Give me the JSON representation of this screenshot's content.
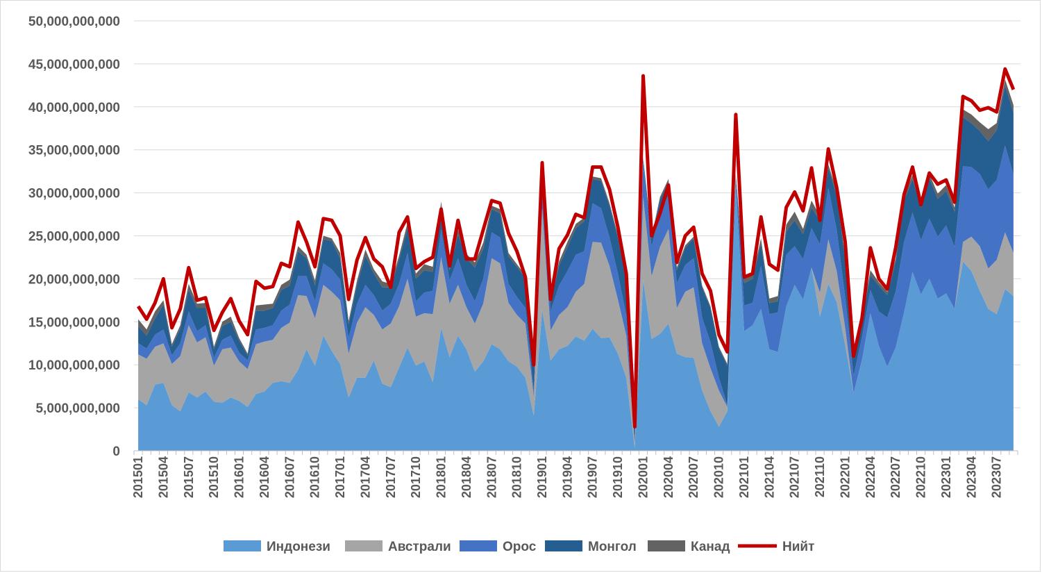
{
  "chart_data": {
    "type": "area",
    "stacked": true,
    "y_axis": {
      "min": 0,
      "max": 50000000000,
      "step": 5000000000,
      "tick_labels": [
        "0",
        "5,000,000,000",
        "10,000,000,000",
        "15,000,000,000",
        "20,000,000,000",
        "25,000,000,000",
        "30,000,000,000",
        "35,000,000,000",
        "40,000,000,000",
        "45,000,000,000",
        "50,000,000,000"
      ]
    },
    "grid": "horizontal",
    "legend_position": "bottom",
    "x_tick_labels": [
      "201501",
      "201504",
      "201507",
      "201510",
      "201601",
      "201604",
      "201607",
      "201610",
      "201701",
      "201704",
      "201707",
      "201710",
      "201801",
      "201804",
      "201807",
      "201810",
      "201901",
      "201904",
      "201907",
      "201910",
      "202001",
      "202004",
      "202007",
      "202010",
      "202101",
      "202104",
      "202107",
      "202110",
      "202201",
      "202204",
      "202207",
      "202210",
      "202301",
      "202304",
      "202307"
    ],
    "first_period": "201501",
    "series": [
      {
        "name": "Индонези",
        "color": "#5b9bd5",
        "values": [
          6.0,
          5.3,
          7.7,
          7.9,
          5.3,
          4.6,
          6.8,
          6.2,
          6.9,
          5.7,
          5.6,
          6.2,
          5.8,
          5.1,
          6.6,
          6.9,
          7.9,
          8.1,
          7.9,
          9.4,
          11.8,
          9.9,
          13.4,
          11.6,
          10.1,
          6.2,
          8.5,
          8.5,
          10.5,
          7.8,
          7.4,
          9.7,
          12.0,
          9.9,
          10.4,
          8.0,
          14.3,
          10.9,
          13.4,
          11.8,
          9.2,
          10.4,
          12.4,
          11.8,
          10.4,
          9.8,
          8.5,
          4.1,
          16.4,
          10.5,
          11.8,
          12.2,
          13.3,
          12.8,
          14.2,
          13.1,
          13.2,
          11.3,
          8.5,
          0.3,
          19.9,
          13.0,
          13.6,
          14.8,
          11.3,
          10.9,
          10.8,
          7.0,
          4.6,
          2.8,
          4.6,
          31.0,
          13.9,
          14.6,
          16.5,
          11.8,
          11.5,
          16.8,
          19.3,
          17.6,
          21.3,
          15.6,
          19.4,
          17.3,
          12.3,
          6.7,
          10.6,
          16.0,
          12.2,
          9.8,
          12.0,
          16.1,
          20.8,
          18.2,
          20.0,
          17.7,
          18.3,
          16.5,
          22.0,
          20.9,
          18.6,
          16.5,
          15.9,
          18.8,
          18.0
        ]
      },
      {
        "name": "Австрали",
        "color": "#a5a5a5",
        "values": [
          5.2,
          5.4,
          4.4,
          4.6,
          4.8,
          6.4,
          7.8,
          6.4,
          6.3,
          4.2,
          6.2,
          5.8,
          4.6,
          4.4,
          5.8,
          5.8,
          5.0,
          6.2,
          7.0,
          8.7,
          6.2,
          5.5,
          5.9,
          6.9,
          7.4,
          5.1,
          6.4,
          8.2,
          5.3,
          6.3,
          7.4,
          7.1,
          8.0,
          5.7,
          5.6,
          7.9,
          8.2,
          6.2,
          5.9,
          4.9,
          5.6,
          6.7,
          10.0,
          10.0,
          6.8,
          6.0,
          6.3,
          2.2,
          11.8,
          3.5,
          4.0,
          4.5,
          5.2,
          6.6,
          10.1,
          11.1,
          8.3,
          6.3,
          4.9,
          0.5,
          9.6,
          7.3,
          10.1,
          11.0,
          5.3,
          7.6,
          8.2,
          5.5,
          5.0,
          4.2,
          0.5,
          0.0,
          0.0,
          0.0,
          0.0,
          0.0,
          0.0,
          0.0,
          0.0,
          0.0,
          0.0,
          2.8,
          5.2,
          3.6,
          2.0,
          0.0,
          0.0,
          0.0,
          0.0,
          0.0,
          0.0,
          0.0,
          0.0,
          0.0,
          0.0,
          0.0,
          0.0,
          0.0,
          2.3,
          4.0,
          5.2,
          4.7,
          6.3,
          6.6,
          5.0
        ]
      },
      {
        "name": "Орос",
        "color": "#4472c4",
        "values": [
          1.3,
          1.2,
          1.4,
          1.6,
          1.0,
          1.5,
          1.6,
          1.3,
          1.4,
          0.9,
          1.1,
          1.4,
          1.0,
          1.0,
          1.7,
          1.6,
          1.7,
          2.0,
          2.1,
          2.2,
          2.3,
          2.0,
          2.5,
          2.6,
          2.4,
          1.8,
          2.2,
          2.6,
          2.3,
          2.2,
          2.3,
          2.6,
          3.0,
          1.8,
          2.4,
          2.7,
          3.2,
          2.7,
          3.1,
          2.6,
          2.6,
          2.9,
          3.0,
          3.0,
          2.2,
          2.1,
          1.8,
          0.6,
          3.3,
          2.2,
          3.4,
          4.2,
          4.3,
          3.8,
          4.5,
          4.0,
          3.3,
          3.0,
          2.3,
          0.2,
          4.0,
          3.4,
          4.0,
          3.9,
          2.9,
          3.1,
          3.4,
          3.0,
          3.0,
          1.5,
          0.2,
          0.5,
          3.0,
          2.6,
          5.0,
          4.1,
          4.6,
          6.0,
          4.5,
          4.7,
          4.6,
          5.6,
          6.0,
          4.8,
          3.5,
          2.0,
          2.6,
          2.7,
          4.0,
          5.7,
          6.5,
          8.2,
          6.9,
          6.3,
          7.0,
          7.2,
          7.9,
          7.2,
          8.8,
          8.1,
          8.4,
          9.2,
          9.3,
          10.1,
          9.1
        ]
      },
      {
        "name": "Монгол",
        "color": "#255e91",
        "values": [
          2.0,
          1.5,
          1.9,
          2.9,
          1.0,
          1.7,
          2.5,
          2.7,
          2.0,
          1.0,
          1.6,
          1.6,
          1.4,
          0.6,
          2.2,
          2.0,
          2.0,
          2.4,
          2.2,
          2.9,
          2.1,
          1.8,
          2.8,
          3.3,
          2.5,
          1.6,
          2.2,
          3.4,
          2.5,
          2.7,
          1.9,
          2.8,
          2.9,
          2.6,
          2.6,
          2.2,
          2.9,
          1.2,
          2.8,
          3.1,
          3.9,
          3.5,
          2.7,
          2.8,
          3.2,
          3.5,
          3.5,
          2.8,
          1.5,
          1.1,
          2.3,
          2.8,
          3.1,
          3.5,
          2.8,
          3.2,
          3.7,
          4.2,
          4.0,
          1.8,
          0.5,
          1.0,
          1.5,
          1.6,
          1.5,
          2.0,
          2.3,
          3.5,
          4.0,
          3.4,
          4.6,
          0.5,
          2.6,
          2.8,
          2.6,
          1.3,
          1.3,
          2.7,
          3.0,
          2.9,
          2.4,
          2.8,
          2.3,
          4.0,
          4.5,
          2.0,
          2.0,
          1.7,
          3.0,
          2.6,
          3.5,
          4.8,
          3.9,
          3.8,
          4.7,
          4.4,
          4.0,
          4.1,
          5.7,
          5.1,
          5.0,
          5.6,
          5.8,
          7.0,
          7.2
        ]
      },
      {
        "name": "Канад",
        "color": "#636363",
        "values": [
          0.8,
          0.7,
          0.8,
          0.5,
          0.3,
          0.4,
          0.7,
          0.5,
          0.6,
          0.3,
          0.5,
          0.6,
          0.3,
          0.2,
          0.6,
          0.7,
          0.5,
          0.6,
          0.7,
          0.6,
          0.4,
          0.6,
          0.4,
          0.3,
          0.6,
          0.4,
          0.5,
          0.7,
          0.5,
          0.7,
          0.4,
          0.5,
          0.6,
          0.6,
          0.7,
          0.6,
          0.4,
          0.3,
          0.5,
          0.5,
          0.6,
          0.7,
          0.4,
          0.5,
          0.4,
          0.3,
          0.3,
          0.2,
          0.2,
          0.3,
          0.5,
          0.6,
          0.5,
          0.4,
          0.3,
          0.3,
          0.3,
          0.3,
          0.3,
          0.1,
          0.1,
          0.2,
          0.3,
          0.3,
          0.3,
          0.3,
          0.2,
          0.2,
          0.2,
          0.2,
          0.2,
          0.2,
          0.6,
          0.4,
          0.6,
          0.5,
          0.6,
          0.8,
          1.0,
          0.6,
          0.8,
          0.5,
          0.4,
          0.5,
          0.3,
          0.3,
          0.3,
          0.6,
          0.4,
          0.4,
          0.4,
          0.4,
          0.5,
          0.4,
          0.5,
          0.6,
          0.7,
          0.5,
          0.9,
          1.0,
          1.0,
          1.4,
          0.8,
          0.7,
          0.9
        ]
      },
      {
        "name": "Нийт",
        "color": "#c00000",
        "type": "line",
        "values": [
          16.8,
          15.3,
          17.2,
          20.0,
          14.3,
          16.5,
          21.3,
          17.5,
          17.8,
          14.0,
          16.1,
          17.7,
          15.1,
          13.5,
          19.7,
          18.9,
          19.1,
          21.8,
          21.4,
          26.6,
          24.3,
          21.4,
          27.0,
          26.8,
          25.0,
          17.6,
          22.2,
          24.8,
          22.3,
          21.4,
          19.0,
          25.4,
          27.2,
          21.2,
          22.0,
          22.5,
          28.1,
          21.5,
          26.8,
          22.3,
          22.3,
          25.7,
          29.1,
          28.8,
          25.3,
          23.2,
          20.2,
          10.0,
          33.5,
          17.6,
          23.5,
          25.1,
          27.5,
          27.1,
          33.0,
          33.0,
          30.4,
          26.0,
          20.6,
          2.8,
          43.6,
          25.0,
          27.6,
          30.9,
          21.9,
          25.0,
          26.0,
          20.6,
          18.6,
          13.5,
          11.5,
          39.1,
          20.2,
          20.6,
          27.2,
          21.7,
          21.0,
          28.3,
          30.1,
          27.9,
          32.9,
          26.8,
          35.1,
          30.6,
          24.3,
          11.0,
          15.4,
          23.6,
          20.0,
          18.8,
          23.6,
          29.8,
          33.0,
          28.6,
          32.3,
          31.0,
          31.5,
          28.9,
          41.2,
          40.7,
          39.6,
          39.9,
          39.4,
          44.4,
          42.0
        ]
      }
    ]
  }
}
